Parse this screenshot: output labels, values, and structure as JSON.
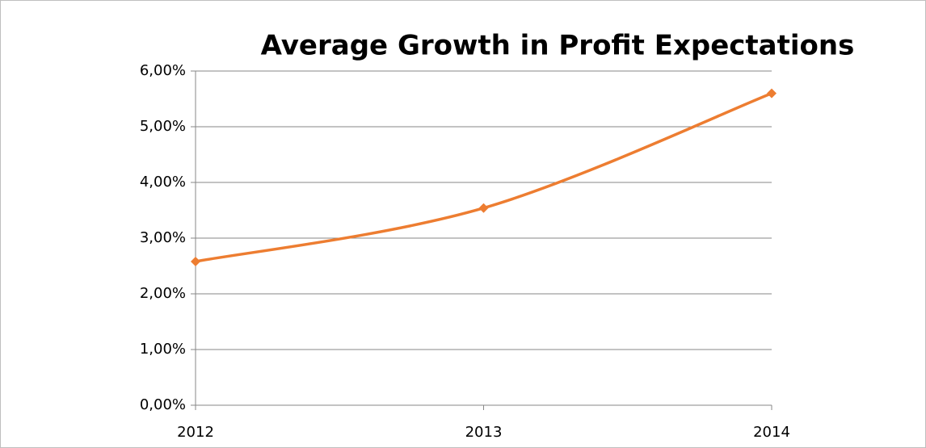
{
  "chart_data": {
    "type": "line",
    "title": "Average Growth in Profit Expectations",
    "x": [
      2012,
      2013,
      2014
    ],
    "series": [
      {
        "color": "#ed7d31",
        "values": [
          2.58,
          3.54,
          5.6
        ]
      }
    ],
    "xlim": [
      2012,
      2014
    ],
    "xticks": [
      2012,
      2013,
      2014
    ],
    "ylim": [
      0,
      6
    ],
    "yticks": [
      {
        "value": 0,
        "label": "0,00%"
      },
      {
        "value": 1,
        "label": "1,00%"
      },
      {
        "value": 2,
        "label": "2,00%"
      },
      {
        "value": 3,
        "label": "3,00%"
      },
      {
        "value": 4,
        "label": "4,00%"
      },
      {
        "value": 5,
        "label": "5,00%"
      },
      {
        "value": 6,
        "label": "6,00%"
      }
    ],
    "grid": true,
    "smooth": true
  }
}
